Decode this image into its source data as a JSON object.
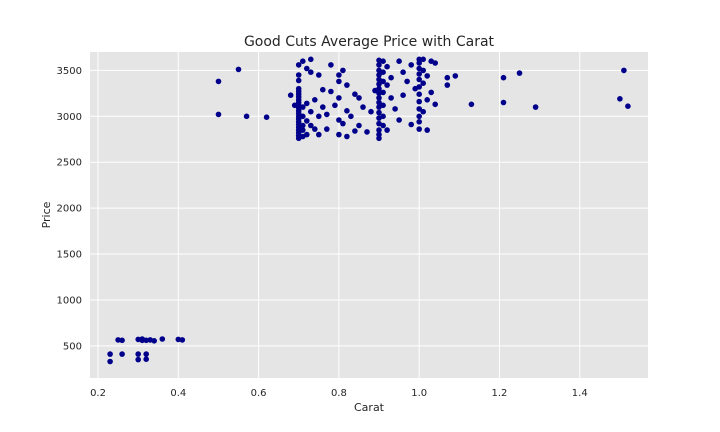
{
  "chart_data": {
    "type": "scatter",
    "title": "Good Cuts Average Price with Carat",
    "xlabel": "Carat",
    "ylabel": "Price",
    "xlim": [
      0.18,
      1.57
    ],
    "ylim": [
      150,
      3700
    ],
    "xticks": [
      0.2,
      0.4,
      0.6,
      0.8,
      1.0,
      1.2,
      1.4
    ],
    "xtick_labels": [
      "0.2",
      "0.4",
      "0.6",
      "0.8",
      "1.0",
      "1.2",
      "1.4"
    ],
    "yticks": [
      500,
      1000,
      1500,
      2000,
      2500,
      3000,
      3500
    ],
    "ytick_labels": [
      "500",
      "1000",
      "1500",
      "2000",
      "2500",
      "3000",
      "3500"
    ],
    "grid": true,
    "background": "#e5e5e5",
    "point_color": "#00008b",
    "series": [
      {
        "points": [
          [
            0.23,
            330
          ],
          [
            0.23,
            410
          ],
          [
            0.25,
            565
          ],
          [
            0.26,
            560
          ],
          [
            0.26,
            410
          ],
          [
            0.3,
            350
          ],
          [
            0.3,
            410
          ],
          [
            0.3,
            570
          ],
          [
            0.31,
            560
          ],
          [
            0.31,
            575
          ],
          [
            0.32,
            355
          ],
          [
            0.32,
            410
          ],
          [
            0.32,
            560
          ],
          [
            0.33,
            565
          ],
          [
            0.34,
            555
          ],
          [
            0.36,
            575
          ],
          [
            0.4,
            570
          ],
          [
            0.41,
            565
          ],
          [
            0.5,
            3380
          ],
          [
            0.5,
            3020
          ],
          [
            0.55,
            3510
          ],
          [
            0.57,
            3000
          ],
          [
            0.62,
            2990
          ],
          [
            0.68,
            3230
          ],
          [
            0.69,
            3120
          ],
          [
            0.7,
            2760
          ],
          [
            0.7,
            2790
          ],
          [
            0.7,
            2820
          ],
          [
            0.7,
            2850
          ],
          [
            0.7,
            2880
          ],
          [
            0.7,
            2910
          ],
          [
            0.7,
            2940
          ],
          [
            0.7,
            2970
          ],
          [
            0.7,
            3000
          ],
          [
            0.7,
            3030
          ],
          [
            0.7,
            3060
          ],
          [
            0.7,
            3090
          ],
          [
            0.7,
            3120
          ],
          [
            0.7,
            3150
          ],
          [
            0.7,
            3180
          ],
          [
            0.7,
            3210
          ],
          [
            0.7,
            3240
          ],
          [
            0.7,
            3270
          ],
          [
            0.7,
            3300
          ],
          [
            0.7,
            3390
          ],
          [
            0.7,
            3450
          ],
          [
            0.7,
            3560
          ],
          [
            0.71,
            3600
          ],
          [
            0.71,
            2780
          ],
          [
            0.71,
            2850
          ],
          [
            0.71,
            2900
          ],
          [
            0.71,
            3000
          ],
          [
            0.71,
            3100
          ],
          [
            0.72,
            3520
          ],
          [
            0.72,
            2800
          ],
          [
            0.72,
            2950
          ],
          [
            0.72,
            3140
          ],
          [
            0.73,
            3620
          ],
          [
            0.73,
            3480
          ],
          [
            0.73,
            2900
          ],
          [
            0.73,
            3050
          ],
          [
            0.74,
            2860
          ],
          [
            0.74,
            3180
          ],
          [
            0.75,
            3450
          ],
          [
            0.75,
            3000
          ],
          [
            0.75,
            2800
          ],
          [
            0.76,
            3290
          ],
          [
            0.76,
            3100
          ],
          [
            0.77,
            2860
          ],
          [
            0.77,
            3020
          ],
          [
            0.78,
            3560
          ],
          [
            0.78,
            3270
          ],
          [
            0.79,
            3120
          ],
          [
            0.8,
            3450
          ],
          [
            0.8,
            3380
          ],
          [
            0.8,
            3200
          ],
          [
            0.8,
            2960
          ],
          [
            0.8,
            2800
          ],
          [
            0.81,
            3500
          ],
          [
            0.81,
            2920
          ],
          [
            0.82,
            3340
          ],
          [
            0.82,
            3060
          ],
          [
            0.82,
            2780
          ],
          [
            0.83,
            3000
          ],
          [
            0.84,
            2840
          ],
          [
            0.84,
            3240
          ],
          [
            0.85,
            3200
          ],
          [
            0.85,
            2900
          ],
          [
            0.86,
            3100
          ],
          [
            0.87,
            2830
          ],
          [
            0.88,
            3050
          ],
          [
            0.89,
            3280
          ],
          [
            0.9,
            2760
          ],
          [
            0.9,
            2800
          ],
          [
            0.9,
            2850
          ],
          [
            0.9,
            2920
          ],
          [
            0.9,
            2980
          ],
          [
            0.9,
            3040
          ],
          [
            0.9,
            3100
          ],
          [
            0.9,
            3150
          ],
          [
            0.9,
            3200
          ],
          [
            0.9,
            3250
          ],
          [
            0.9,
            3300
          ],
          [
            0.9,
            3350
          ],
          [
            0.9,
            3400
          ],
          [
            0.9,
            3450
          ],
          [
            0.9,
            3500
          ],
          [
            0.9,
            3560
          ],
          [
            0.9,
            3610
          ],
          [
            0.91,
            2900
          ],
          [
            0.91,
            3000
          ],
          [
            0.91,
            3120
          ],
          [
            0.91,
            3260
          ],
          [
            0.91,
            3380
          ],
          [
            0.91,
            3480
          ],
          [
            0.91,
            3600
          ],
          [
            0.92,
            3540
          ],
          [
            0.92,
            3340
          ],
          [
            0.92,
            2850
          ],
          [
            0.93,
            3420
          ],
          [
            0.93,
            3200
          ],
          [
            0.94,
            3080
          ],
          [
            0.95,
            3600
          ],
          [
            0.95,
            2960
          ],
          [
            0.96,
            3480
          ],
          [
            0.96,
            3230
          ],
          [
            0.97,
            3380
          ],
          [
            0.98,
            2910
          ],
          [
            0.98,
            3560
          ],
          [
            0.99,
            3300
          ],
          [
            1.0,
            2860
          ],
          [
            1.0,
            2940
          ],
          [
            1.0,
            3000
          ],
          [
            1.0,
            3080
          ],
          [
            1.0,
            3160
          ],
          [
            1.0,
            3240
          ],
          [
            1.0,
            3320
          ],
          [
            1.0,
            3400
          ],
          [
            1.0,
            3460
          ],
          [
            1.0,
            3520
          ],
          [
            1.0,
            3580
          ],
          [
            1.0,
            3620
          ],
          [
            1.01,
            3050
          ],
          [
            1.01,
            3360
          ],
          [
            1.01,
            3500
          ],
          [
            1.01,
            3620
          ],
          [
            1.02,
            2850
          ],
          [
            1.02,
            3180
          ],
          [
            1.02,
            3440
          ],
          [
            1.03,
            3600
          ],
          [
            1.03,
            3260
          ],
          [
            1.04,
            3580
          ],
          [
            1.04,
            3130
          ],
          [
            1.07,
            3420
          ],
          [
            1.07,
            3340
          ],
          [
            1.09,
            3440
          ],
          [
            1.13,
            3130
          ],
          [
            1.21,
            3420
          ],
          [
            1.21,
            3150
          ],
          [
            1.25,
            3470
          ],
          [
            1.29,
            3100
          ],
          [
            1.5,
            3190
          ],
          [
            1.51,
            3500
          ],
          [
            1.52,
            3110
          ]
        ]
      }
    ]
  }
}
